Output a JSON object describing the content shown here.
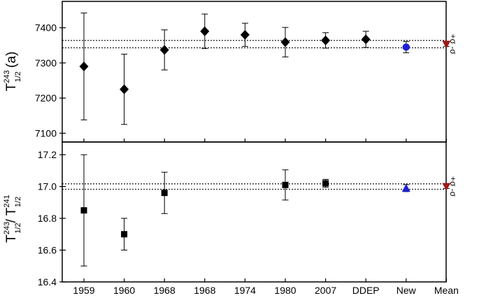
{
  "chart_data": [
    {
      "type": "scatter",
      "panel": "top",
      "categories": [
        "1959",
        "1960",
        "1968",
        "1968",
        "1974",
        "1980",
        "2007",
        "DDEP",
        "New",
        "Mean"
      ],
      "ylabel": {
        "main": "T",
        "sup": "243",
        "sub": "1/2",
        "unit": " (a)"
      },
      "ylim": [
        7075,
        7475
      ],
      "yticks": [
        7100,
        7200,
        7300,
        7400
      ],
      "grid": false,
      "series": [
        {
          "marker": "diamond",
          "color": "#000000",
          "x_index": [
            0,
            1,
            2,
            3,
            4,
            5,
            6,
            7
          ],
          "values": [
            7290,
            7225,
            7337,
            7390,
            7380,
            7359,
            7364,
            7367
          ],
          "err": [
            152,
            100,
            57,
            49,
            33,
            42,
            22,
            23
          ]
        },
        {
          "marker": "circle",
          "color": "#1f1fd6",
          "x_index": [
            8
          ],
          "values": [
            7345
          ],
          "err": [
            16
          ]
        },
        {
          "marker": "triangle-down",
          "color": "#a01818",
          "x_index": [
            9
          ],
          "values": [
            7353
          ],
          "err": [
            6
          ]
        }
      ],
      "reference_lines": [
        {
          "value": 7364,
          "style": "dotted",
          "label": "+σ"
        },
        {
          "value": 7343,
          "style": "dotted",
          "label": "-σ"
        }
      ]
    },
    {
      "type": "scatter",
      "panel": "bottom",
      "categories": [
        "1959",
        "1960",
        "1968",
        "1968",
        "1974",
        "1980",
        "2007",
        "DDEP",
        "New",
        "Mean"
      ],
      "ylabel": {
        "a_main": "T",
        "a_sup": "243",
        "a_sub": "1/2",
        "sep": "/",
        "b_main": "T",
        "b_sup": "241",
        "b_sub": "1/2"
      },
      "ylim": [
        16.4,
        17.28
      ],
      "yticks": [
        16.4,
        16.6,
        16.8,
        17.0,
        17.2
      ],
      "grid": false,
      "series": [
        {
          "marker": "square",
          "color": "#000000",
          "x_index": [
            0,
            1,
            2,
            5,
            6
          ],
          "values": [
            16.85,
            16.7,
            16.96,
            17.01,
            17.02
          ],
          "err": [
            0.35,
            0.1,
            0.13,
            0.095,
            0.025
          ]
        },
        {
          "marker": "triangle-up",
          "color": "#1f1fd6",
          "x_index": [
            8
          ],
          "values": [
            16.99
          ],
          "err": [
            0.022
          ]
        },
        {
          "marker": "triangle-down",
          "color": "#a01818",
          "x_index": [
            9
          ],
          "values": [
            17.0
          ],
          "err": [
            0.012
          ]
        }
      ],
      "reference_lines": [
        {
          "value": 17.017,
          "style": "dotted",
          "label": "+σ"
        },
        {
          "value": 16.983,
          "style": "dotted",
          "label": "-σ"
        }
      ]
    }
  ]
}
